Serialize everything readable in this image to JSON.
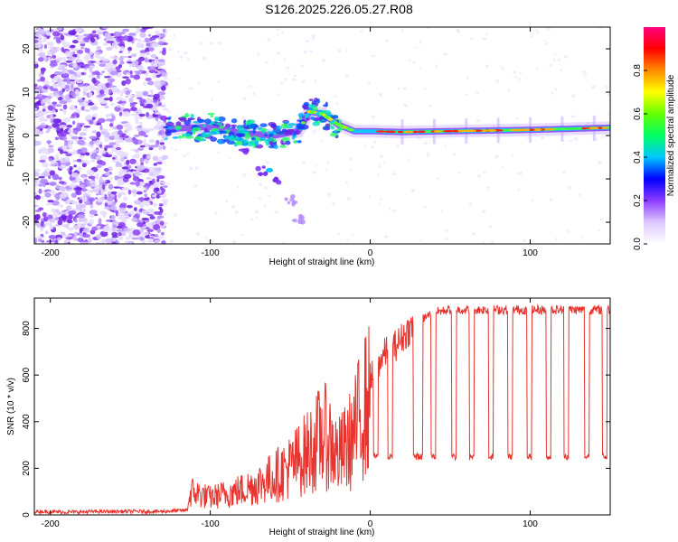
{
  "title": "S126.2025.226.05.27.R08",
  "chart_data": [
    {
      "type": "heatmap",
      "xlabel": "Height of straight line (km)",
      "ylabel": "Frequency (Hz)",
      "xlim": [
        -210,
        150
      ],
      "ylim": [
        -25,
        25
      ],
      "xticks": [
        -200,
        -100,
        0,
        100
      ],
      "yticks": [
        -20,
        -10,
        0,
        10,
        20
      ],
      "colorbar": {
        "label": "Normalized spectral amplitude",
        "range": [
          0.0,
          1.0
        ],
        "ticks": [
          0.0,
          0.2,
          0.4,
          0.6,
          0.8
        ],
        "tick_labels": [
          "0.0",
          "0.2",
          "0.4",
          "0.6",
          "0.8"
        ],
        "colors": [
          "#ffffff",
          "#dcc8ff",
          "#8c3cff",
          "#0000ff",
          "#00c8ff",
          "#00ff64",
          "#64ff00",
          "#ffff00",
          "#ff8c00",
          "#ff0000",
          "#ff0080"
        ]
      },
      "features": {
        "noise_region_x": [
          -210,
          -128
        ],
        "carrier_onset_x": -128,
        "carrier_track": [
          [
            -128,
            1.5
          ],
          [
            -100,
            2.0
          ],
          [
            -80,
            0.5
          ],
          [
            -60,
            0.0
          ],
          [
            -45,
            1.0
          ],
          [
            -38,
            5.5
          ],
          [
            -30,
            5.0
          ],
          [
            -20,
            2.5
          ],
          [
            -10,
            1.0
          ],
          [
            0,
            1.0
          ],
          [
            20,
            0.8
          ],
          [
            50,
            1.0
          ],
          [
            100,
            1.3
          ],
          [
            150,
            1.8
          ]
        ],
        "secondary_branch": [
          [
            -80,
            -3.0
          ],
          [
            -68,
            -8.0
          ],
          [
            -60,
            -10.0
          ],
          [
            -50,
            -15.0
          ],
          [
            -45,
            -19.5
          ]
        ],
        "spike_x": [
          20,
          40,
          60,
          80,
          100,
          120,
          140
        ]
      }
    },
    {
      "type": "line",
      "xlabel": "Height of straight line (km)",
      "ylabel": "SNR (10 * v/v)",
      "xlim": [
        -210,
        150
      ],
      "ylim": [
        0,
        930
      ],
      "xticks": [
        -200,
        -100,
        0,
        100
      ],
      "yticks": [
        0,
        200,
        400,
        600,
        800
      ],
      "color": "#e8342e",
      "series": [
        {
          "name": "SNR",
          "x": [
            -210,
            -190,
            -170,
            -150,
            -130,
            -115,
            -112,
            -100,
            -90,
            -80,
            -70,
            -60,
            -50,
            -40,
            -35,
            -30,
            -25,
            -20,
            -15,
            -10,
            -5,
            0,
            5,
            10,
            15,
            20,
            25,
            30,
            35,
            40,
            50,
            60,
            70,
            80,
            90,
            100,
            110,
            120,
            130,
            140,
            150
          ],
          "values": [
            15,
            12,
            14,
            15,
            15,
            20,
            120,
            90,
            110,
            130,
            160,
            200,
            250,
            320,
            360,
            420,
            380,
            300,
            350,
            420,
            550,
            600,
            650,
            700,
            720,
            760,
            800,
            830,
            850,
            870,
            880,
            880,
            880,
            880,
            880,
            880,
            880,
            880,
            880,
            880,
            880
          ]
        }
      ],
      "dropout_segments_x": [
        [
          2,
          5
        ],
        [
          11,
          14
        ],
        [
          27,
          33
        ],
        [
          38,
          41
        ],
        [
          51,
          54
        ],
        [
          62,
          65
        ],
        [
          74,
          77
        ],
        [
          86,
          89
        ],
        [
          98,
          101
        ],
        [
          110,
          113
        ],
        [
          121,
          124
        ],
        [
          134,
          137
        ],
        [
          145,
          148
        ]
      ],
      "dropout_level": 250
    }
  ]
}
